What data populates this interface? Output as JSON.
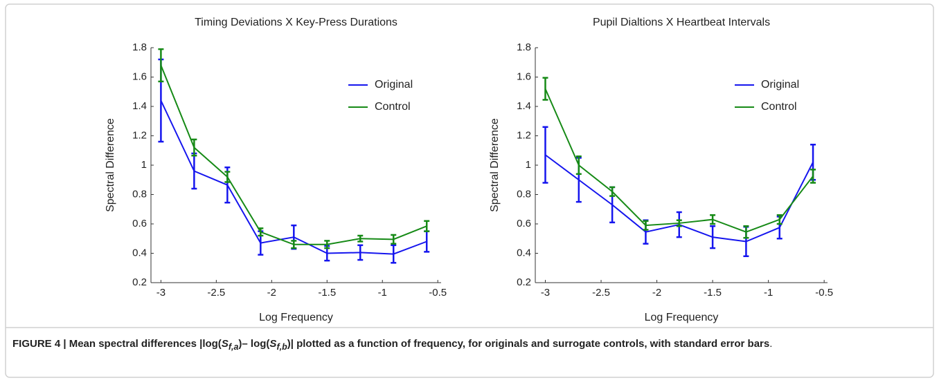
{
  "chart_data": [
    {
      "type": "line",
      "title": "Timing Deviations X Key-Press Durations",
      "xlabel": "Log Frequency",
      "ylabel": "Spectral Difference",
      "x": [
        -3,
        -2.7,
        -2.4,
        -2.1,
        -1.8,
        -1.5,
        -1.2,
        -0.9,
        -0.6
      ],
      "series": [
        {
          "name": "Original",
          "color": "#1515ee",
          "values": [
            1.44,
            0.96,
            0.865,
            0.47,
            0.51,
            0.4,
            0.405,
            0.395,
            0.48
          ],
          "errors": [
            0.28,
            0.12,
            0.12,
            0.08,
            0.08,
            0.05,
            0.05,
            0.06,
            0.07
          ]
        },
        {
          "name": "Control",
          "color": "#168a16",
          "values": [
            1.68,
            1.12,
            0.92,
            0.545,
            0.46,
            0.46,
            0.5,
            0.495,
            0.585
          ],
          "errors": [
            0.11,
            0.055,
            0.035,
            0.025,
            0.025,
            0.025,
            0.02,
            0.03,
            0.035
          ]
        }
      ],
      "xlim": [
        -3.09,
        -0.47
      ],
      "ylim": [
        0.2,
        1.8
      ],
      "xticks": [
        -3,
        -2.5,
        -2,
        -1.5,
        -1,
        -0.5
      ],
      "yticks": [
        0.2,
        0.4,
        0.6,
        0.8,
        1,
        1.2,
        1.4,
        1.6,
        1.8
      ],
      "legend": "upper right"
    },
    {
      "type": "line",
      "title": "Pupil Dialtions X Heartbeat Intervals",
      "xlabel": "Log Frequency",
      "ylabel": "Spectral Difference",
      "x": [
        -3,
        -2.7,
        -2.4,
        -2.1,
        -1.8,
        -1.5,
        -1.2,
        -0.9,
        -0.6
      ],
      "series": [
        {
          "name": "Original",
          "color": "#1515ee",
          "values": [
            1.07,
            0.9,
            0.73,
            0.545,
            0.595,
            0.51,
            0.48,
            0.575,
            1.02
          ],
          "errors": [
            0.19,
            0.15,
            0.12,
            0.08,
            0.085,
            0.075,
            0.1,
            0.075,
            0.12
          ]
        },
        {
          "name": "Control",
          "color": "#168a16",
          "values": [
            1.52,
            1.0,
            0.82,
            0.59,
            0.605,
            0.63,
            0.545,
            0.63,
            0.925
          ],
          "errors": [
            0.075,
            0.06,
            0.03,
            0.03,
            0.02,
            0.03,
            0.04,
            0.03,
            0.045
          ]
        }
      ],
      "xlim": [
        -3.09,
        -0.47
      ],
      "ylim": [
        0.2,
        1.8
      ],
      "xticks": [
        -3,
        -2.5,
        -2,
        -1.5,
        -1,
        -0.5
      ],
      "yticks": [
        0.2,
        0.4,
        0.6,
        0.8,
        1,
        1.2,
        1.4,
        1.6,
        1.8
      ],
      "legend": "upper right"
    }
  ],
  "caption": {
    "lead": "FIGURE 4 | Mean spectral differences |log(",
    "s1": "S",
    "sub1": "f,a",
    "mid": ")– log(",
    "s2": "S",
    "sub2": "f,b",
    "tail": ")| plotted as a function of frequency, for originals and surrogate controls, with standard error bars",
    "end": "."
  }
}
